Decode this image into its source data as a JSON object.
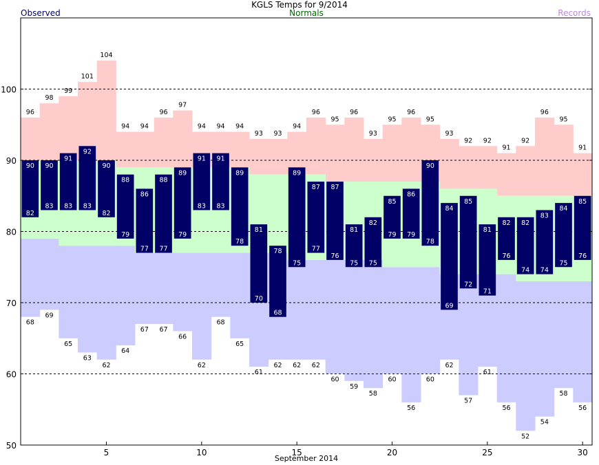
{
  "chart_data": {
    "type": "bar",
    "title": "KGLS Temps for 9/2014",
    "xlabel": "September 2014",
    "ylabel": "",
    "ylim": [
      50,
      110
    ],
    "yticks": [
      50,
      60,
      70,
      80,
      90,
      100
    ],
    "xticks": [
      5,
      10,
      15,
      20,
      25,
      30
    ],
    "grid": true,
    "legend": {
      "observed": "Observed",
      "normals": "Normals",
      "records": "Records"
    },
    "colors": {
      "observed": "#000066",
      "normal": "#ccffcc",
      "record_high": "#ffcccc",
      "record_low": "#ccccff",
      "legend_normals": "#006600",
      "legend_records": "#bb88dd"
    },
    "days": [
      1,
      2,
      3,
      4,
      5,
      6,
      7,
      8,
      9,
      10,
      11,
      12,
      13,
      14,
      15,
      16,
      17,
      18,
      19,
      20,
      21,
      22,
      23,
      24,
      25,
      26,
      27,
      28,
      29,
      30
    ],
    "observed_high": [
      90,
      90,
      91,
      92,
      90,
      88,
      86,
      88,
      89,
      91,
      91,
      89,
      81,
      78,
      89,
      87,
      87,
      81,
      82,
      85,
      86,
      90,
      84,
      85,
      81,
      82,
      82,
      83,
      84,
      85
    ],
    "observed_low": [
      82,
      83,
      83,
      83,
      82,
      79,
      77,
      77,
      79,
      83,
      83,
      78,
      70,
      68,
      75,
      77,
      76,
      75,
      75,
      79,
      79,
      78,
      69,
      72,
      71,
      76,
      74,
      74,
      75,
      76
    ],
    "normal_high": [
      90,
      90,
      90,
      90,
      90,
      89,
      89,
      89,
      89,
      89,
      89,
      89,
      88,
      88,
      88,
      88,
      87,
      87,
      87,
      87,
      87,
      87,
      86,
      86,
      86,
      85,
      85,
      85,
      85,
      85
    ],
    "normal_low": [
      79,
      79,
      78,
      78,
      78,
      78,
      77,
      77,
      77,
      77,
      77,
      77,
      77,
      77,
      76,
      76,
      76,
      76,
      76,
      75,
      75,
      75,
      74,
      74,
      74,
      74,
      73,
      73,
      73,
      73
    ],
    "record_high": [
      96,
      98,
      99,
      101,
      104,
      94,
      94,
      96,
      97,
      94,
      94,
      94,
      93,
      93,
      94,
      96,
      95,
      96,
      93,
      95,
      96,
      95,
      93,
      92,
      92,
      91,
      92,
      96,
      95,
      91
    ],
    "record_low": [
      68,
      69,
      65,
      63,
      62,
      64,
      67,
      67,
      66,
      62,
      68,
      65,
      61,
      62,
      62,
      62,
      60,
      59,
      58,
      60,
      56,
      60,
      62,
      57,
      61,
      56,
      52,
      54,
      58,
      56
    ]
  }
}
